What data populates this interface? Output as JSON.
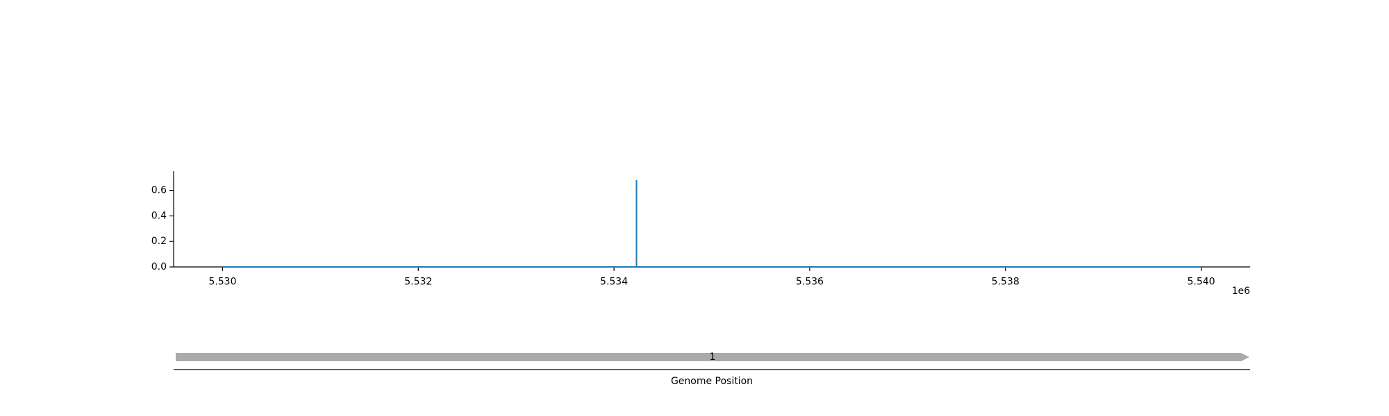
{
  "chart_data": [
    {
      "type": "line",
      "x_scale_exponent_label": "1e6",
      "x_ticks": [
        5530000,
        5532000,
        5534000,
        5536000,
        5538000,
        5540000
      ],
      "x_tick_labels": [
        "5.530",
        "5.532",
        "5.534",
        "5.536",
        "5.538",
        "5.540"
      ],
      "y_ticks": [
        0.0,
        0.2,
        0.4,
        0.6
      ],
      "y_tick_labels": [
        "0.0",
        "0.2",
        "0.4",
        "0.6"
      ],
      "xlim": [
        5529500,
        5540500
      ],
      "ylim": [
        0.0,
        0.75
      ],
      "series": [
        {
          "color": "#1f77b4",
          "x": [
            5530000,
            5534230,
            5534230,
            5534230,
            5540000
          ],
          "y": [
            0.0,
            0.0,
            0.68,
            0.0,
            0.0
          ]
        }
      ],
      "grid": false
    },
    {
      "type": "gene-track",
      "xlabel": "Genome Position",
      "features": [
        {
          "label": "1",
          "start": 5529500,
          "end": 5540500,
          "color": "#aaaaaa",
          "direction": "forward"
        }
      ]
    }
  ]
}
